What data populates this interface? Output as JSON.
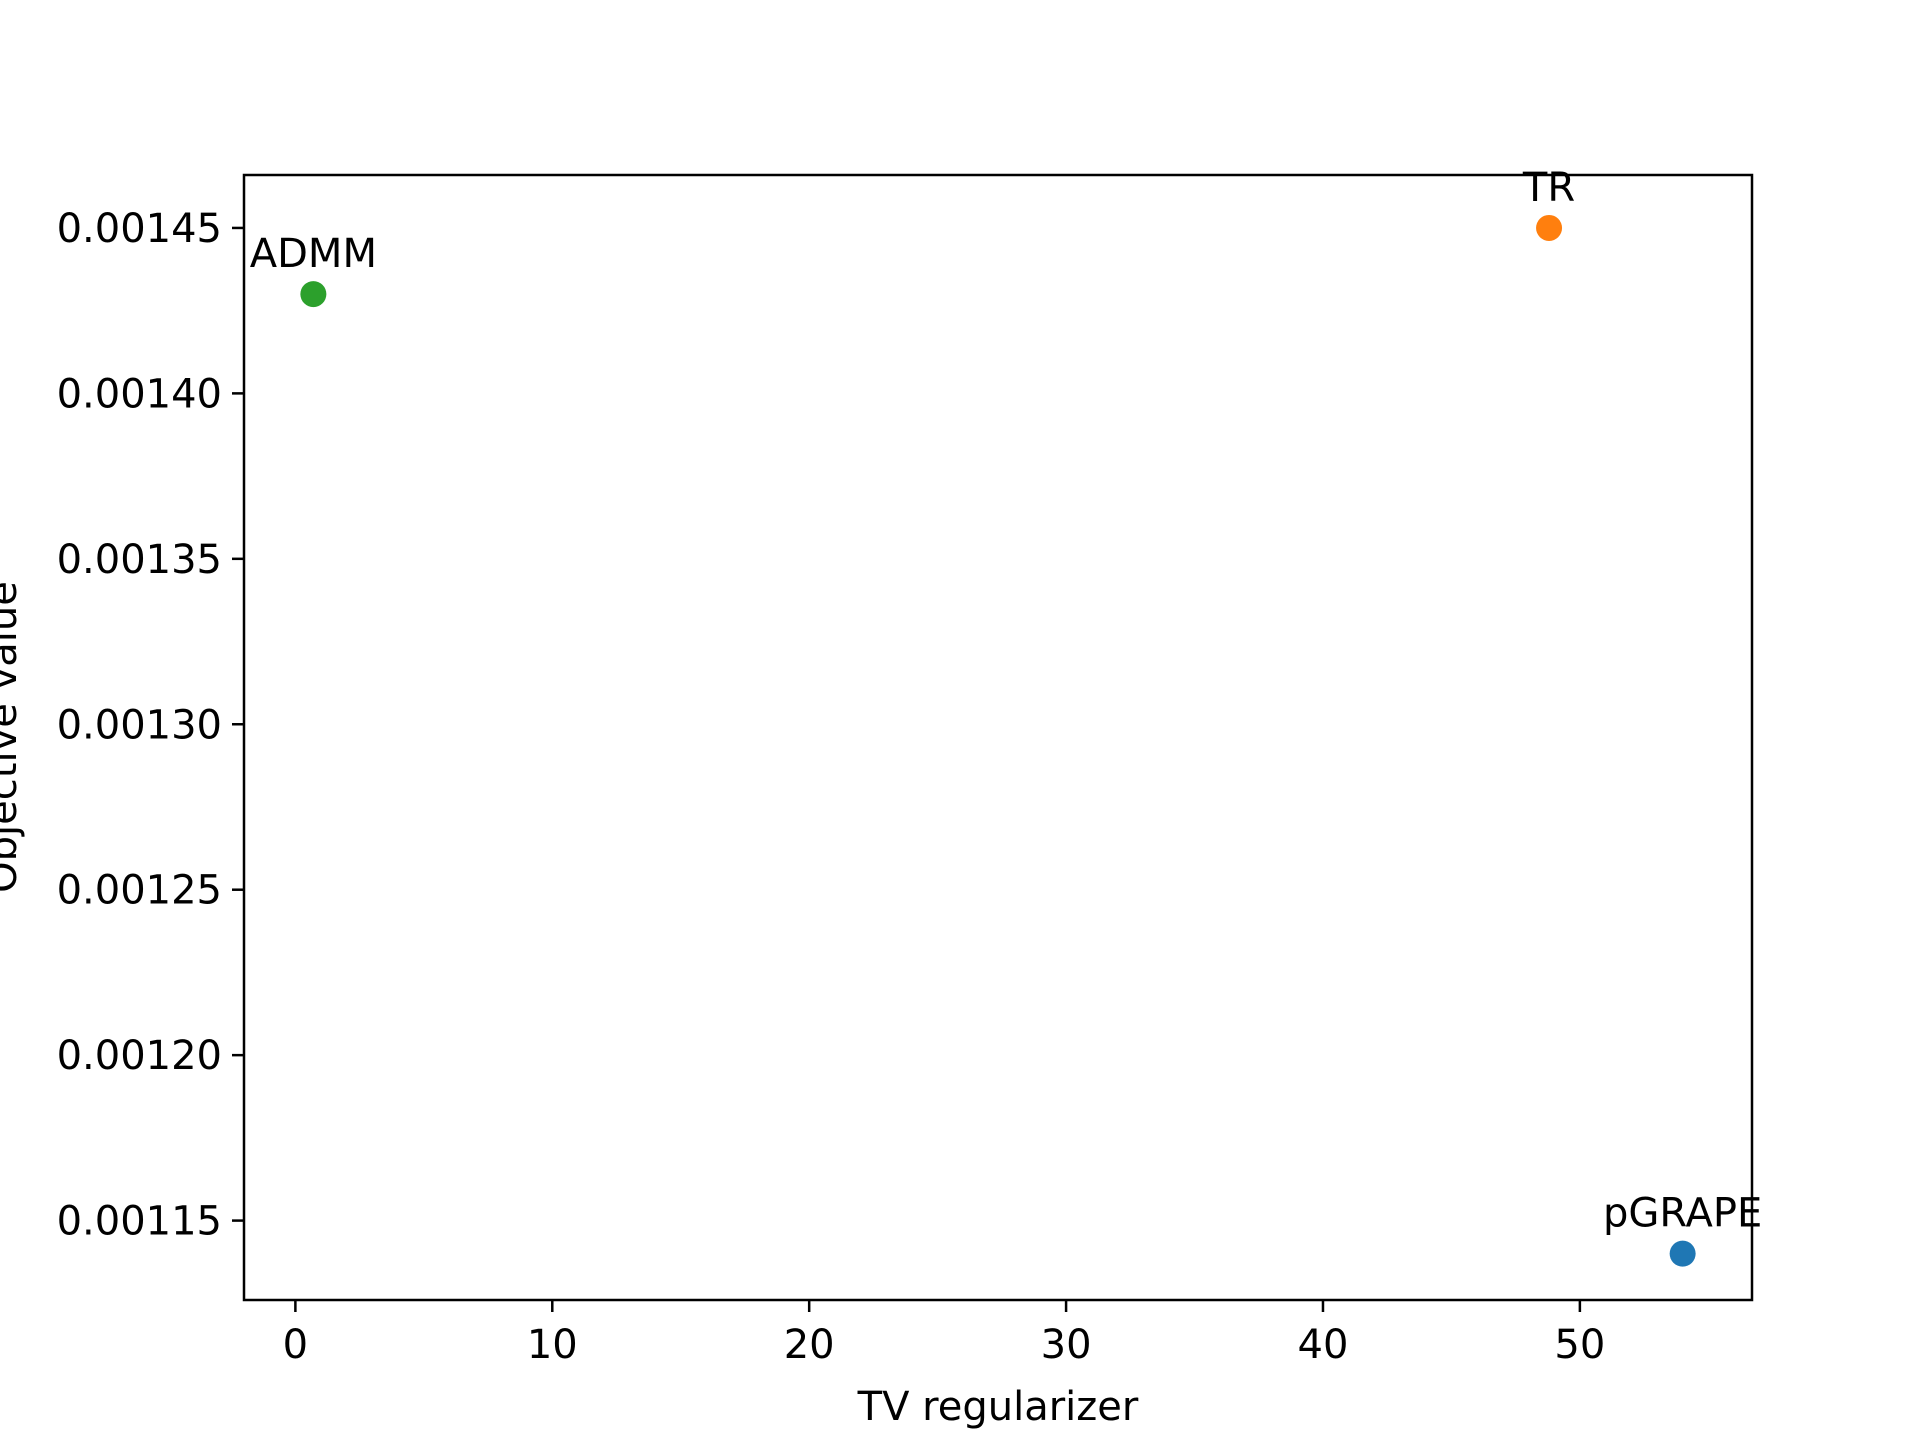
{
  "chart_data": {
    "type": "scatter",
    "xlabel": "TV regularizer",
    "ylabel": "Objective value",
    "xlim": [
      -2,
      56.7
    ],
    "ylim": [
      0.001126,
      0.001466
    ],
    "x_ticks": [
      0,
      10,
      20,
      30,
      40,
      50
    ],
    "x_tick_labels": [
      "0",
      "10",
      "20",
      "30",
      "40",
      "50"
    ],
    "y_ticks": [
      0.00115,
      0.0012,
      0.00125,
      0.0013,
      0.00135,
      0.0014,
      0.00145
    ],
    "y_tick_labels": [
      "0.00115",
      "0.00120",
      "0.00125",
      "0.00130",
      "0.00135",
      "0.00140",
      "0.00145"
    ],
    "grid": false,
    "points": [
      {
        "label": "pGRAPE",
        "x": 54.0,
        "y": 0.00114,
        "color": "#1f77b4"
      },
      {
        "label": "TR",
        "x": 48.8,
        "y": 0.00145,
        "color": "#ff7f0e"
      },
      {
        "label": "ADMM",
        "x": 0.7,
        "y": 0.00143,
        "color": "#2ca02c"
      }
    ]
  }
}
